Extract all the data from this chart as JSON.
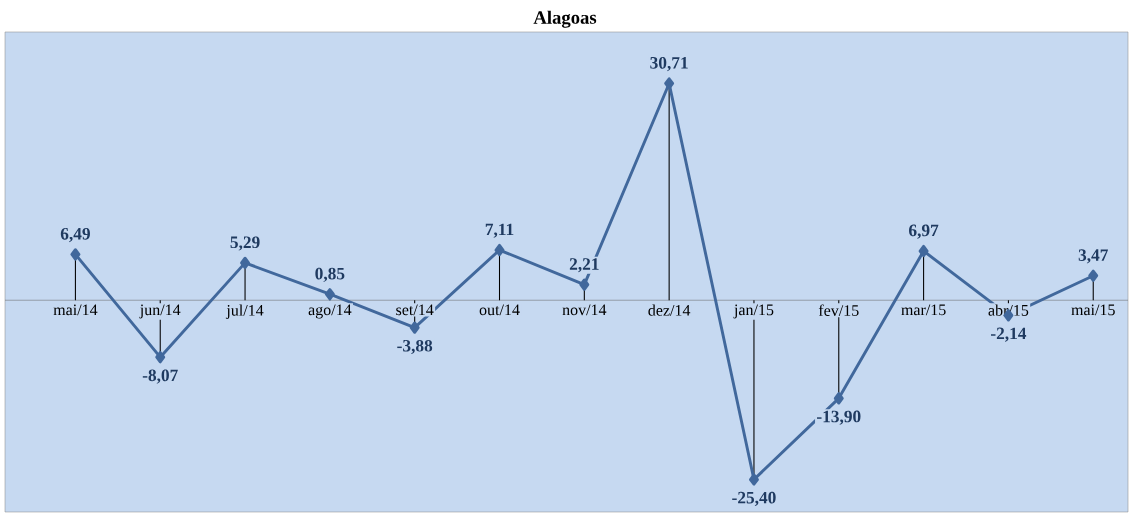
{
  "chart_data": {
    "type": "line",
    "title": "Alagoas",
    "categories": [
      "mai/14",
      "jun/14",
      "jul/14",
      "ago/14",
      "set/14",
      "out/14",
      "nov/14",
      "dez/14",
      "jan/15",
      "fev/15",
      "mar/15",
      "abr/15",
      "mai/15"
    ],
    "series": [
      {
        "color": "#41689c",
        "values": [
          6.49,
          -8.07,
          5.29,
          0.85,
          -3.88,
          7.11,
          2.21,
          30.71,
          -25.4,
          -13.9,
          6.97,
          -2.14,
          3.47
        ],
        "value_labels": [
          "6,49",
          "-8,07",
          "5,29",
          "0,85",
          "-3,88",
          "7,11",
          "2,21",
          "30,71",
          "-25,40",
          "-13,90",
          "6,97",
          "-2,14",
          "3,47"
        ]
      }
    ],
    "ylim": [
      -30,
      38
    ],
    "tick_labels": "x",
    "marker": "diamond",
    "line_style": "solid"
  }
}
